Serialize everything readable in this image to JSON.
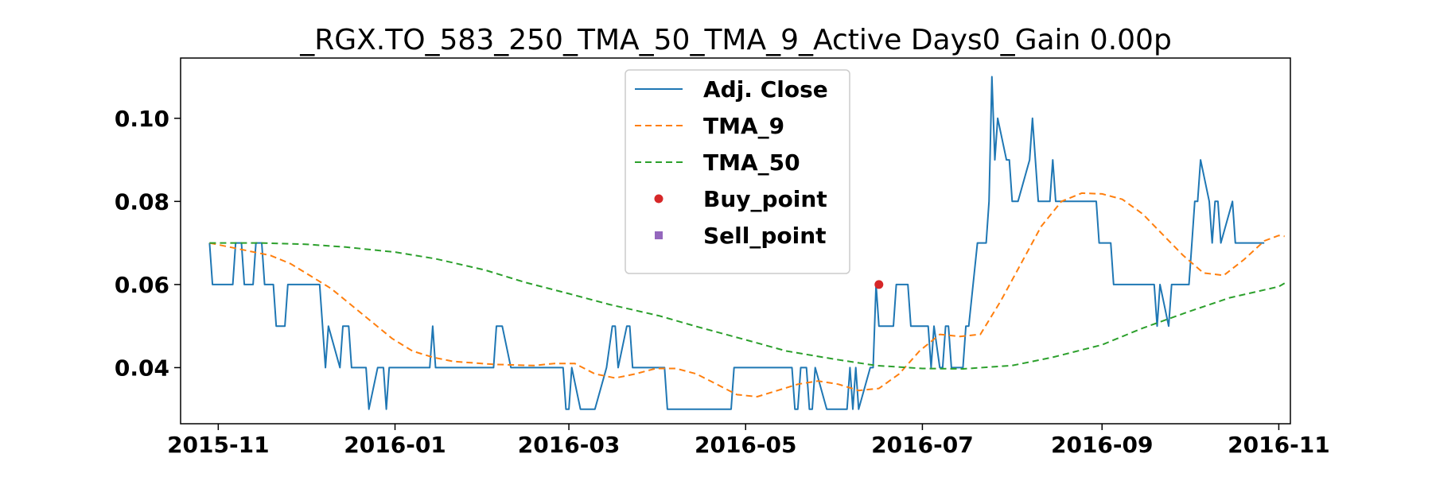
{
  "chart_data": {
    "type": "line",
    "title": "_RGX.TO_583_250_TMA_50_TMA_9_Active Days0_Gain   0.00p",
    "xlabel": "",
    "ylabel": "",
    "x_axis_type": "date",
    "xlim": [
      "2015-10-19",
      "2016-11-05"
    ],
    "ylim": [
      0.0265,
      0.1145
    ],
    "x_ticks": [
      "2015-11-01",
      "2016-01-01",
      "2016-03-01",
      "2016-05-01",
      "2016-07-01",
      "2016-09-01",
      "2016-11-01"
    ],
    "x_tick_labels": [
      "2015-11",
      "2016-01",
      "2016-03",
      "2016-05",
      "2016-07",
      "2016-09",
      "2016-11"
    ],
    "y_ticks": [
      0.04,
      0.06,
      0.08,
      0.1
    ],
    "y_tick_labels": [
      "0.04",
      "0.06",
      "0.08",
      "0.10"
    ],
    "grid": false,
    "legend": {
      "position": "top-center",
      "entries": [
        {
          "label": "Adj. Close",
          "color": "#1f77b4",
          "style": "solid-line"
        },
        {
          "label": "TMA_9",
          "color": "#ff7f0e",
          "style": "dashed-line"
        },
        {
          "label": "TMA_50",
          "color": "#2ca02c",
          "style": "dashed-line"
        },
        {
          "label": "Buy_point",
          "color": "#d62728",
          "style": "circle-marker"
        },
        {
          "label": "Sell_point",
          "color": "#9467bd",
          "style": "square-marker"
        }
      ]
    },
    "series": [
      {
        "name": "Adj. Close",
        "color": "#1f77b4",
        "points": [
          [
            "2015-10-29",
            0.07
          ],
          [
            "2015-10-30",
            0.06
          ],
          [
            "2015-11-06",
            0.06
          ],
          [
            "2015-11-07",
            0.07
          ],
          [
            "2015-11-09",
            0.07
          ],
          [
            "2015-11-10",
            0.06
          ],
          [
            "2015-11-13",
            0.06
          ],
          [
            "2015-11-14",
            0.07
          ],
          [
            "2015-11-16",
            0.07
          ],
          [
            "2015-11-17",
            0.06
          ],
          [
            "2015-11-20",
            0.06
          ],
          [
            "2015-11-21",
            0.05
          ],
          [
            "2015-11-24",
            0.05
          ],
          [
            "2015-11-25",
            0.06
          ],
          [
            "2015-12-06",
            0.06
          ],
          [
            "2015-12-08",
            0.04
          ],
          [
            "2015-12-09",
            0.05
          ],
          [
            "2015-12-13",
            0.04
          ],
          [
            "2015-12-14",
            0.05
          ],
          [
            "2015-12-16",
            0.05
          ],
          [
            "2015-12-17",
            0.04
          ],
          [
            "2015-12-22",
            0.04
          ],
          [
            "2015-12-23",
            0.03
          ],
          [
            "2015-12-26",
            0.04
          ],
          [
            "2015-12-28",
            0.04
          ],
          [
            "2015-12-29",
            0.03
          ],
          [
            "2015-12-30",
            0.04
          ],
          [
            "2016-01-13",
            0.04
          ],
          [
            "2016-01-14",
            0.05
          ],
          [
            "2016-01-15",
            0.04
          ],
          [
            "2016-02-04",
            0.04
          ],
          [
            "2016-02-05",
            0.05
          ],
          [
            "2016-02-07",
            0.05
          ],
          [
            "2016-02-10",
            0.04
          ],
          [
            "2016-02-28",
            0.04
          ],
          [
            "2016-02-29",
            0.03
          ],
          [
            "2016-03-01",
            0.03
          ],
          [
            "2016-03-02",
            0.04
          ],
          [
            "2016-03-05",
            0.03
          ],
          [
            "2016-03-10",
            0.03
          ],
          [
            "2016-03-14",
            0.04
          ],
          [
            "2016-03-16",
            0.05
          ],
          [
            "2016-03-17",
            0.05
          ],
          [
            "2016-03-18",
            0.04
          ],
          [
            "2016-03-21",
            0.05
          ],
          [
            "2016-03-22",
            0.05
          ],
          [
            "2016-03-23",
            0.04
          ],
          [
            "2016-04-03",
            0.04
          ],
          [
            "2016-04-04",
            0.03
          ],
          [
            "2016-04-26",
            0.03
          ],
          [
            "2016-04-27",
            0.04
          ],
          [
            "2016-05-17",
            0.04
          ],
          [
            "2016-05-18",
            0.03
          ],
          [
            "2016-05-19",
            0.03
          ],
          [
            "2016-05-20",
            0.04
          ],
          [
            "2016-05-22",
            0.04
          ],
          [
            "2016-05-23",
            0.03
          ],
          [
            "2016-05-24",
            0.03
          ],
          [
            "2016-05-25",
            0.04
          ],
          [
            "2016-05-29",
            0.03
          ],
          [
            "2016-06-05",
            0.03
          ],
          [
            "2016-06-06",
            0.04
          ],
          [
            "2016-06-07",
            0.03
          ],
          [
            "2016-06-08",
            0.04
          ],
          [
            "2016-06-09",
            0.03
          ],
          [
            "2016-06-13",
            0.04
          ],
          [
            "2016-06-14",
            0.04
          ],
          [
            "2016-06-15",
            0.06
          ],
          [
            "2016-06-16",
            0.05
          ],
          [
            "2016-06-21",
            0.05
          ],
          [
            "2016-06-22",
            0.06
          ],
          [
            "2016-06-26",
            0.06
          ],
          [
            "2016-06-27",
            0.05
          ],
          [
            "2016-07-03",
            0.05
          ],
          [
            "2016-07-04",
            0.04
          ],
          [
            "2016-07-05",
            0.05
          ],
          [
            "2016-07-07",
            0.04
          ],
          [
            "2016-07-08",
            0.04
          ],
          [
            "2016-07-09",
            0.05
          ],
          [
            "2016-07-10",
            0.05
          ],
          [
            "2016-07-11",
            0.04
          ],
          [
            "2016-07-15",
            0.04
          ],
          [
            "2016-07-16",
            0.05
          ],
          [
            "2016-07-17",
            0.05
          ],
          [
            "2016-07-20",
            0.07
          ],
          [
            "2016-07-23",
            0.07
          ],
          [
            "2016-07-24",
            0.08
          ],
          [
            "2016-07-25",
            0.11
          ],
          [
            "2016-07-26",
            0.09
          ],
          [
            "2016-07-27",
            0.1
          ],
          [
            "2016-07-30",
            0.09
          ],
          [
            "2016-07-31",
            0.09
          ],
          [
            "2016-08-01",
            0.08
          ],
          [
            "2016-08-03",
            0.08
          ],
          [
            "2016-08-07",
            0.09
          ],
          [
            "2016-08-08",
            0.1
          ],
          [
            "2016-08-10",
            0.08
          ],
          [
            "2016-08-14",
            0.08
          ],
          [
            "2016-08-15",
            0.09
          ],
          [
            "2016-08-16",
            0.08
          ],
          [
            "2016-08-30",
            0.08
          ],
          [
            "2016-08-31",
            0.07
          ],
          [
            "2016-09-04",
            0.07
          ],
          [
            "2016-09-05",
            0.06
          ],
          [
            "2016-09-19",
            0.06
          ],
          [
            "2016-09-20",
            0.05
          ],
          [
            "2016-09-21",
            0.06
          ],
          [
            "2016-09-24",
            0.05
          ],
          [
            "2016-09-25",
            0.06
          ],
          [
            "2016-10-01",
            0.06
          ],
          [
            "2016-10-02",
            0.07
          ],
          [
            "2016-10-03",
            0.08
          ],
          [
            "2016-10-04",
            0.08
          ],
          [
            "2016-10-05",
            0.09
          ],
          [
            "2016-10-08",
            0.08
          ],
          [
            "2016-10-09",
            0.07
          ],
          [
            "2016-10-10",
            0.08
          ],
          [
            "2016-10-11",
            0.08
          ],
          [
            "2016-10-12",
            0.07
          ],
          [
            "2016-10-16",
            0.08
          ],
          [
            "2016-10-17",
            0.07
          ],
          [
            "2016-10-27",
            0.07
          ]
        ]
      },
      {
        "name": "TMA_9",
        "color": "#ff7f0e",
        "points": [
          [
            "2015-10-29",
            0.07
          ],
          [
            "2015-11-05",
            0.069
          ],
          [
            "2015-11-12",
            0.068
          ],
          [
            "2015-11-19",
            0.067
          ],
          [
            "2015-11-26",
            0.065
          ],
          [
            "2015-12-03",
            0.062
          ],
          [
            "2015-12-10",
            0.059
          ],
          [
            "2015-12-17",
            0.055
          ],
          [
            "2015-12-24",
            0.051
          ],
          [
            "2015-12-31",
            0.047
          ],
          [
            "2016-01-07",
            0.044
          ],
          [
            "2016-01-14",
            0.0425
          ],
          [
            "2016-01-21",
            0.0415
          ],
          [
            "2016-02-04",
            0.0408
          ],
          [
            "2016-02-18",
            0.0405
          ],
          [
            "2016-02-25",
            0.041
          ],
          [
            "2016-03-03",
            0.041
          ],
          [
            "2016-03-10",
            0.0385
          ],
          [
            "2016-03-17",
            0.0375
          ],
          [
            "2016-03-24",
            0.0385
          ],
          [
            "2016-03-31",
            0.0398
          ],
          [
            "2016-04-07",
            0.0398
          ],
          [
            "2016-04-14",
            0.0385
          ],
          [
            "2016-04-21",
            0.036
          ],
          [
            "2016-04-28",
            0.0335
          ],
          [
            "2016-05-05",
            0.033
          ],
          [
            "2016-05-12",
            0.0345
          ],
          [
            "2016-05-19",
            0.036
          ],
          [
            "2016-05-26",
            0.0368
          ],
          [
            "2016-06-02",
            0.036
          ],
          [
            "2016-06-09",
            0.0345
          ],
          [
            "2016-06-16",
            0.035
          ],
          [
            "2016-06-23",
            0.0385
          ],
          [
            "2016-06-30",
            0.044
          ],
          [
            "2016-07-07",
            0.048
          ],
          [
            "2016-07-14",
            0.0475
          ],
          [
            "2016-07-21",
            0.048
          ],
          [
            "2016-07-28",
            0.056
          ],
          [
            "2016-08-04",
            0.065
          ],
          [
            "2016-08-11",
            0.074
          ],
          [
            "2016-08-18",
            0.08
          ],
          [
            "2016-08-25",
            0.082
          ],
          [
            "2016-09-01",
            0.0818
          ],
          [
            "2016-09-08",
            0.0805
          ],
          [
            "2016-09-15",
            0.077
          ],
          [
            "2016-09-22",
            0.072
          ],
          [
            "2016-09-29",
            0.067
          ],
          [
            "2016-10-06",
            0.0628
          ],
          [
            "2016-10-13",
            0.0622
          ],
          [
            "2016-10-20",
            0.066
          ],
          [
            "2016-10-27",
            0.0705
          ],
          [
            "2016-11-01",
            0.0718
          ],
          [
            "2016-11-03",
            0.0716
          ]
        ]
      },
      {
        "name": "TMA_50",
        "color": "#2ca02c",
        "points": [
          [
            "2015-10-29",
            0.07
          ],
          [
            "2015-11-15",
            0.07
          ],
          [
            "2015-12-01",
            0.0697
          ],
          [
            "2015-12-15",
            0.069
          ],
          [
            "2016-01-01",
            0.0678
          ],
          [
            "2016-01-15",
            0.0662
          ],
          [
            "2016-02-01",
            0.0635
          ],
          [
            "2016-02-15",
            0.0605
          ],
          [
            "2016-03-01",
            0.0578
          ],
          [
            "2016-03-15",
            0.0552
          ],
          [
            "2016-04-01",
            0.0525
          ],
          [
            "2016-04-15",
            0.0497
          ],
          [
            "2016-05-01",
            0.0467
          ],
          [
            "2016-05-15",
            0.044
          ],
          [
            "2016-06-01",
            0.042
          ],
          [
            "2016-06-15",
            0.0405
          ],
          [
            "2016-07-01",
            0.0398
          ],
          [
            "2016-07-15",
            0.0397
          ],
          [
            "2016-08-01",
            0.0405
          ],
          [
            "2016-08-15",
            0.0425
          ],
          [
            "2016-09-01",
            0.0455
          ],
          [
            "2016-09-15",
            0.0495
          ],
          [
            "2016-10-01",
            0.0535
          ],
          [
            "2016-10-15",
            0.0568
          ],
          [
            "2016-11-01",
            0.0595
          ],
          [
            "2016-11-03",
            0.0603
          ]
        ]
      }
    ],
    "buy_points": [
      [
        "2016-06-16",
        0.06
      ]
    ],
    "sell_points": []
  }
}
